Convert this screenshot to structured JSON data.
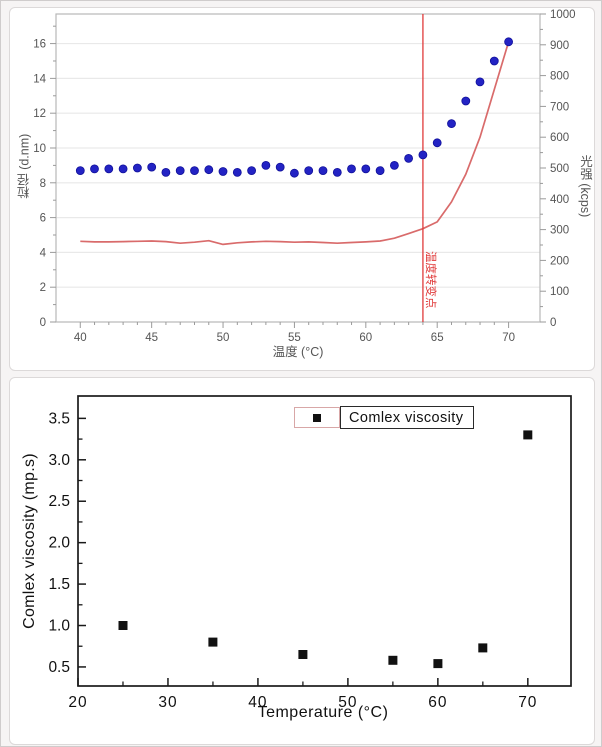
{
  "chart_data": [
    {
      "type": "scatter",
      "panel": "top",
      "title": "",
      "xlabel": "温度 (°C)",
      "ylabel_left": "粒径 (d.nm)",
      "ylabel_right": "光强 (kcps)",
      "xlim": [
        38.3,
        72.2
      ],
      "ylim_left": [
        0,
        17.7
      ],
      "ylim_right": [
        0,
        1000
      ],
      "x_ticks": [
        40,
        45,
        50,
        55,
        60,
        65,
        70
      ],
      "y_ticks_left": [
        0,
        2,
        4,
        6,
        8,
        10,
        12,
        14,
        16
      ],
      "y_ticks_right": [
        0,
        100,
        200,
        300,
        400,
        500,
        600,
        700,
        800,
        900,
        1000
      ],
      "grid": "horizontal",
      "legend_position": "none",
      "series": [
        {
          "name": "粒径",
          "type": "scatter",
          "axis": "left",
          "color": "#2323c4",
          "x": [
            40,
            41,
            42,
            43,
            44,
            45,
            46,
            47,
            48,
            49,
            50,
            51,
            52,
            53,
            54,
            55,
            56,
            57,
            58,
            59,
            60,
            61,
            62,
            63,
            64,
            65,
            66,
            67,
            68,
            69,
            70
          ],
          "y": [
            8.7,
            8.8,
            8.8,
            8.8,
            8.85,
            8.9,
            8.6,
            8.7,
            8.7,
            8.75,
            8.65,
            8.6,
            8.7,
            9.0,
            8.9,
            8.55,
            8.7,
            8.7,
            8.6,
            8.8,
            8.8,
            8.7,
            9.0,
            9.4,
            9.6,
            10.3,
            11.4,
            12.7,
            13.8,
            15.0,
            16.1
          ]
        },
        {
          "name": "光强",
          "type": "line",
          "axis": "right",
          "color": "#d96b6b",
          "x": [
            40,
            41,
            42,
            43,
            44,
            45,
            46,
            47,
            48,
            49,
            50,
            51,
            52,
            53,
            54,
            55,
            56,
            57,
            58,
            59,
            60,
            61,
            62,
            63,
            64,
            65,
            66,
            67,
            68,
            69,
            70
          ],
          "y": [
            262,
            260,
            260,
            261,
            262,
            263,
            261,
            256,
            259,
            264,
            252,
            257,
            260,
            262,
            261,
            259,
            260,
            258,
            256,
            258,
            260,
            263,
            272,
            287,
            303,
            325,
            390,
            480,
            600,
            755,
            910
          ]
        }
      ],
      "annotation": {
        "x": 64,
        "label": "温度转变点",
        "color": "#e03a3a"
      }
    },
    {
      "type": "scatter",
      "panel": "bottom",
      "title": "",
      "xlabel": "Temperature (°C)",
      "ylabel": "Comlex viscosity (mp.s)",
      "xlim": [
        20,
        74.8
      ],
      "ylim": [
        0.27,
        3.77
      ],
      "x_ticks": [
        20,
        30,
        40,
        50,
        60,
        70
      ],
      "y_ticks": [
        0.5,
        1.0,
        1.5,
        2.0,
        2.5,
        3.0,
        3.5
      ],
      "y_tick_labels": [
        "0.5",
        "1.0",
        "1.5",
        "2.0",
        "2.5",
        "3.0",
        "3.5"
      ],
      "grid": "off",
      "legend": {
        "label": "Comlex viscosity",
        "position": "top-center",
        "marker_color": "#111111",
        "marker_box_border": "#d8a7a7",
        "text_box_border": "#2a2a2a"
      },
      "marker": "square",
      "marker_color": "#111111",
      "x": [
        25,
        35,
        45,
        55,
        60,
        65,
        70
      ],
      "y": [
        1.0,
        0.8,
        0.65,
        0.58,
        0.54,
        0.73,
        3.3
      ]
    }
  ],
  "colors": {
    "top_frame": "#b8b8b8",
    "top_tick": "#9a9a9a",
    "top_tick_label": "#555555",
    "grid_line": "#e9e9e9",
    "dot_fill": "#2323c4",
    "dot_edge": "#10109a",
    "intensity_line": "#d96b6b",
    "annotation_red": "#e03a3a",
    "bottom_frame": "#1a1a1a"
  }
}
